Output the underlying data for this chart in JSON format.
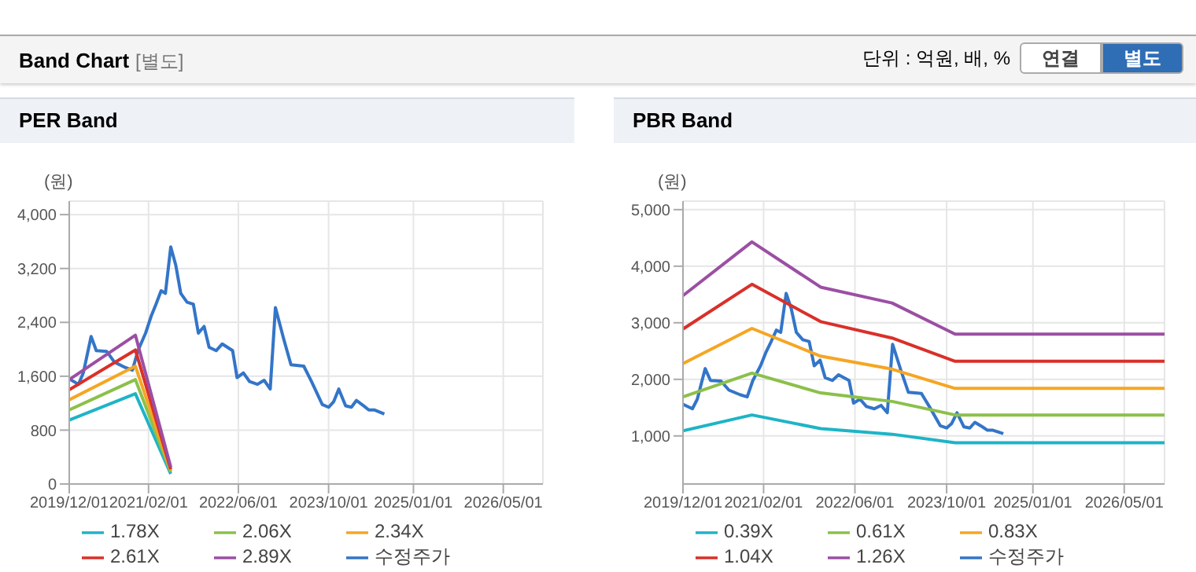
{
  "chart_data": [
    {
      "type": "other",
      "title": "Band Chart",
      "subtitle": "[별도]",
      "annotations": [
        "단위 : 억원, 배, %",
        "연결",
        "별도"
      ]
    },
    {
      "type": "line",
      "title": "PER Band",
      "ylabel": "(원)",
      "xlim": [
        "2019-12-01",
        "2026-12-01"
      ],
      "xticks": [
        {
          "value": "2019-12-01",
          "label": "2019/12/01"
        },
        {
          "value": "2021-02-01",
          "label": "2021/02/01"
        },
        {
          "value": "2022-06-01",
          "label": "2022/06/01"
        },
        {
          "value": "2023-10-01",
          "label": "2023/10/01"
        },
        {
          "value": "2025-01-01",
          "label": "2025/01/01"
        },
        {
          "value": "2026-05-01",
          "label": "2026/05/01"
        }
      ],
      "ylim": [
        0,
        4200
      ],
      "yticks": [
        0,
        800,
        {
          "value": 1600,
          "label": "1,600"
        },
        {
          "value": 2400,
          "label": "2,400"
        },
        {
          "value": 3200,
          "label": "3,200"
        },
        {
          "value": 4000,
          "label": "4,000"
        }
      ],
      "grid": true,
      "legend": "bottom",
      "marker": "none",
      "line_style": "solid",
      "series": [
        {
          "name": "수정주가",
          "color": "#3375c8",
          "x": [
            "2019-12-01",
            "2020-01-20",
            "2020-02-15",
            "2020-03-28",
            "2020-04-25",
            "2020-06-20",
            "2020-08-01",
            "2020-09-28",
            "2020-11-06",
            "2020-12-06",
            "2021-01-16",
            "2021-02-15",
            "2021-03-12",
            "2021-04-10",
            "2021-05-03",
            "2021-06-01",
            "2021-06-28",
            "2021-07-25",
            "2021-08-28",
            "2021-10-01",
            "2021-10-28",
            "2021-11-28",
            "2021-12-25",
            "2022-02-01",
            "2022-03-06",
            "2022-05-01",
            "2022-05-25",
            "2022-06-28",
            "2022-08-01",
            "2022-09-12",
            "2022-10-18",
            "2022-11-20",
            "2022-12-18",
            "2023-02-01",
            "2023-03-12",
            "2023-05-20",
            "2023-07-01",
            "2023-08-28",
            "2023-10-01",
            "2023-10-28",
            "2023-11-25",
            "2024-01-01",
            "2024-02-01",
            "2024-02-28",
            "2024-04-08",
            "2024-05-05",
            "2024-06-03",
            "2024-07-28"
          ],
          "values": [
            1560,
            1480,
            1650,
            2190,
            1980,
            1970,
            1810,
            1730,
            1690,
            1980,
            2240,
            2490,
            2660,
            2870,
            2830,
            3520,
            3250,
            2830,
            2700,
            2670,
            2240,
            2340,
            2030,
            1980,
            2080,
            1980,
            1580,
            1650,
            1520,
            1480,
            1540,
            1410,
            2620,
            2150,
            1770,
            1750,
            1520,
            1180,
            1140,
            1220,
            1410,
            1160,
            1140,
            1240,
            1160,
            1100,
            1100,
            1040
          ]
        },
        {
          "name": "1.78X",
          "color": "#1eb4c6",
          "x": [
            "2019-12-01",
            "2020-11-22",
            "2021-06-01"
          ],
          "values": [
            950,
            1340,
            150
          ]
        },
        {
          "name": "2.06X",
          "color": "#8cc04a",
          "x": [
            "2019-12-01",
            "2020-11-22",
            "2021-06-01"
          ],
          "values": [
            1100,
            1550,
            180
          ]
        },
        {
          "name": "2.34X",
          "color": "#f5a623",
          "x": [
            "2019-12-01",
            "2020-11-22",
            "2021-06-01"
          ],
          "values": [
            1250,
            1750,
            200
          ]
        },
        {
          "name": "2.61X",
          "color": "#d9302a",
          "x": [
            "2019-12-01",
            "2020-11-22",
            "2021-06-01"
          ],
          "values": [
            1400,
            1990,
            220
          ]
        },
        {
          "name": "2.89X",
          "color": "#9b4fa3",
          "x": [
            "2019-12-01",
            "2020-11-22",
            "2021-06-01"
          ],
          "values": [
            1550,
            2210,
            250
          ]
        }
      ]
    },
    {
      "type": "line",
      "title": "PBR Band",
      "ylabel": "(원)",
      "xlim": [
        "2019-12-01",
        "2026-12-01"
      ],
      "xticks": [
        {
          "value": "2019-12-01",
          "label": "2019/12/01"
        },
        {
          "value": "2021-02-01",
          "label": "2021/02/01"
        },
        {
          "value": "2022-06-01",
          "label": "2022/06/01"
        },
        {
          "value": "2023-10-01",
          "label": "2023/10/01"
        },
        {
          "value": "2025-01-01",
          "label": "2025/01/01"
        },
        {
          "value": "2026-05-01",
          "label": "2026/05/01"
        }
      ],
      "ylim": [
        150,
        5150
      ],
      "yticks": [
        {
          "value": 1000,
          "label": "1,000"
        },
        {
          "value": 2000,
          "label": "2,000"
        },
        {
          "value": 3000,
          "label": "3,000"
        },
        {
          "value": 4000,
          "label": "4,000"
        },
        {
          "value": 5000,
          "label": "5,000"
        }
      ],
      "grid": true,
      "legend": "bottom",
      "marker": "none",
      "line_style": "solid",
      "series": [
        {
          "name": "수정주가",
          "color": "#3375c8",
          "x": [
            "2019-12-01",
            "2020-01-20",
            "2020-02-15",
            "2020-03-28",
            "2020-04-25",
            "2020-06-20",
            "2020-08-01",
            "2020-09-28",
            "2020-11-06",
            "2020-12-06",
            "2021-01-16",
            "2021-02-15",
            "2021-03-12",
            "2021-04-10",
            "2021-05-03",
            "2021-06-01",
            "2021-06-28",
            "2021-07-25",
            "2021-08-28",
            "2021-10-01",
            "2021-10-28",
            "2021-11-28",
            "2021-12-25",
            "2022-02-01",
            "2022-03-06",
            "2022-05-01",
            "2022-05-25",
            "2022-06-28",
            "2022-08-01",
            "2022-09-12",
            "2022-10-18",
            "2022-11-20",
            "2022-12-18",
            "2023-02-01",
            "2023-03-12",
            "2023-05-20",
            "2023-07-01",
            "2023-08-28",
            "2023-10-01",
            "2023-10-28",
            "2023-11-25",
            "2024-01-01",
            "2024-02-01",
            "2024-02-28",
            "2024-04-08",
            "2024-05-05",
            "2024-06-03",
            "2024-07-28"
          ],
          "values": [
            1560,
            1480,
            1650,
            2190,
            1980,
            1970,
            1810,
            1730,
            1690,
            1980,
            2240,
            2490,
            2660,
            2870,
            2830,
            3520,
            3250,
            2830,
            2700,
            2670,
            2240,
            2340,
            2030,
            1980,
            2080,
            1980,
            1580,
            1650,
            1520,
            1480,
            1540,
            1410,
            2620,
            2150,
            1770,
            1750,
            1520,
            1180,
            1140,
            1220,
            1410,
            1160,
            1140,
            1240,
            1160,
            1100,
            1100,
            1040
          ]
        },
        {
          "name": "0.39X",
          "color": "#1eb4c6",
          "x": [
            "2019-12-01",
            "2020-12-01",
            "2021-12-01",
            "2022-12-15",
            "2023-11-15",
            "2026-12-01"
          ],
          "values": [
            1090,
            1370,
            1130,
            1030,
            880,
            880
          ]
        },
        {
          "name": "0.61X",
          "color": "#8cc04a",
          "x": [
            "2019-12-01",
            "2020-12-01",
            "2021-12-01",
            "2022-12-15",
            "2023-11-15",
            "2026-12-01"
          ],
          "values": [
            1690,
            2110,
            1760,
            1610,
            1370,
            1370
          ]
        },
        {
          "name": "0.83X",
          "color": "#f5a623",
          "x": [
            "2019-12-01",
            "2020-12-01",
            "2021-12-01",
            "2022-12-15",
            "2023-11-15",
            "2026-12-01"
          ],
          "values": [
            2280,
            2900,
            2410,
            2180,
            1840,
            1840
          ]
        },
        {
          "name": "1.04X",
          "color": "#d9302a",
          "x": [
            "2019-12-01",
            "2020-12-01",
            "2021-12-01",
            "2022-12-15",
            "2023-11-15",
            "2026-12-01"
          ],
          "values": [
            2890,
            3680,
            3020,
            2730,
            2320,
            2320
          ]
        },
        {
          "name": "1.26X",
          "color": "#9b4fa3",
          "x": [
            "2019-12-01",
            "2020-12-01",
            "2021-12-01",
            "2022-12-15",
            "2023-11-15",
            "2026-12-01"
          ],
          "values": [
            3480,
            4430,
            3630,
            3350,
            2800,
            2800
          ]
        }
      ]
    }
  ]
}
